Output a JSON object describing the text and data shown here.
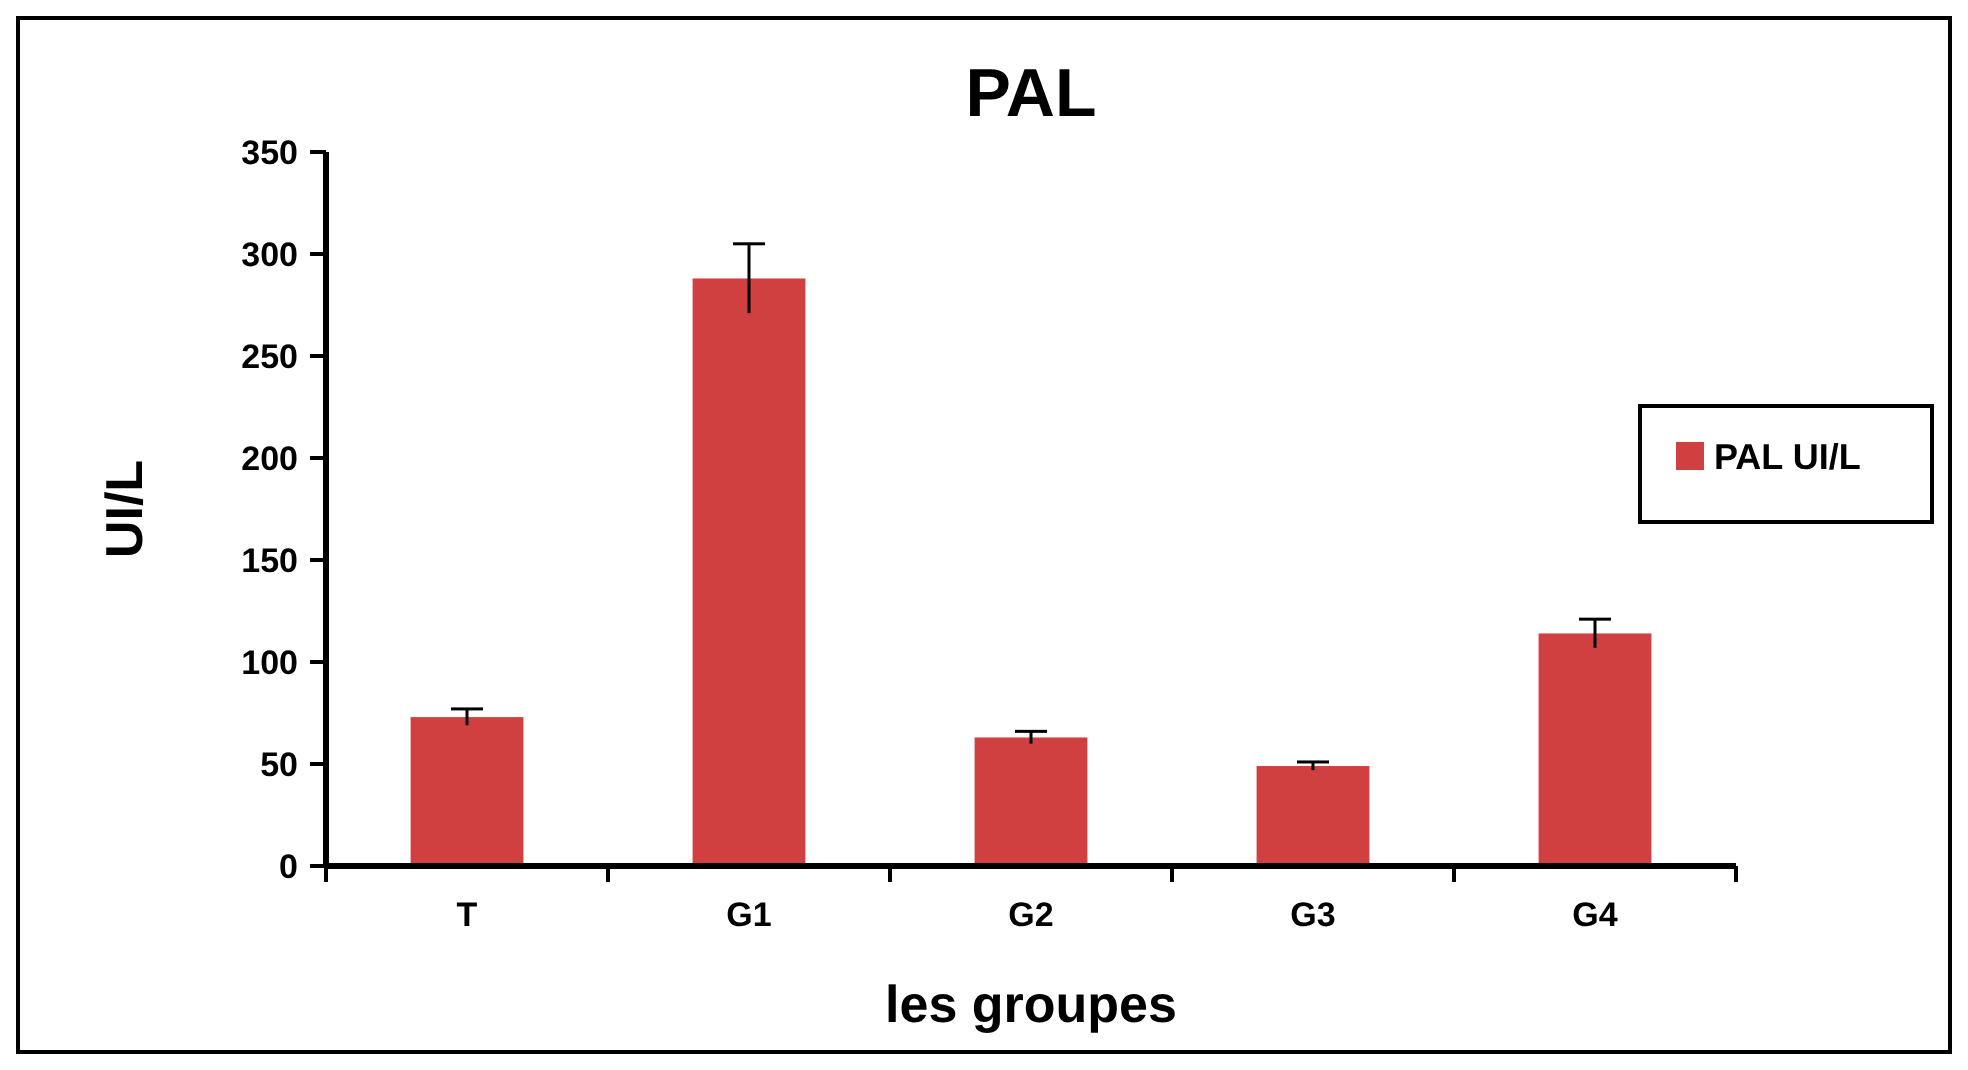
{
  "chart_data": {
    "type": "bar",
    "title": "PAL",
    "xlabel": "les groupes",
    "ylabel": "UI/L",
    "categories": [
      "T",
      "G1",
      "G2",
      "G3",
      "G4"
    ],
    "series": [
      {
        "name": "PAL UI/L",
        "color": "#d04040",
        "values": [
          73,
          288,
          63,
          49,
          114
        ],
        "errors": [
          4,
          17,
          3,
          2,
          7
        ]
      }
    ],
    "ylim": [
      0,
      350
    ],
    "yticks": [
      0,
      50,
      100,
      150,
      200,
      250,
      300,
      350
    ],
    "grid": false,
    "legend": "right"
  }
}
